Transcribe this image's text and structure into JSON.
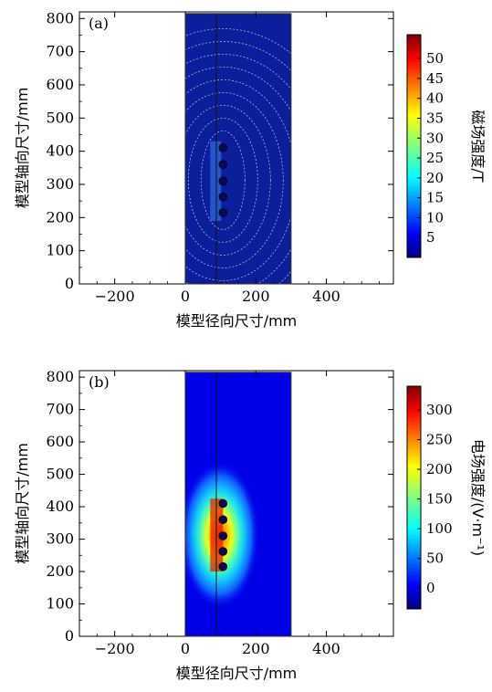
{
  "chart_data": [
    {
      "type": "heatmap",
      "panel_label": "(a)",
      "xlabel": "模型径向尺寸/mm",
      "ylabel": "模型轴向尺寸/mm",
      "xlim": [
        -300,
        590
      ],
      "ylim": [
        0,
        820
      ],
      "xticks": [
        "−200",
        "0",
        "200",
        "400"
      ],
      "xtick_values": [
        -200,
        0,
        200,
        400
      ],
      "yticks": [
        "0",
        "100",
        "200",
        "300",
        "400",
        "500",
        "600",
        "700",
        "800"
      ],
      "ytick_values": [
        0,
        100,
        200,
        300,
        400,
        500,
        600,
        700,
        800
      ],
      "domain_x": [
        0,
        300
      ],
      "domain_y": [
        0,
        815
      ],
      "boundary_x": 88,
      "coil_x": 107,
      "coil_y": [
        215,
        262,
        310,
        360,
        410
      ],
      "colorbar": {
        "label": "磁场强度/T",
        "range": [
          0,
          56
        ],
        "ticks": [
          "5",
          "10",
          "15",
          "20",
          "25",
          "30",
          "35",
          "40",
          "45",
          "50"
        ],
        "tick_values": [
          5,
          10,
          15,
          20,
          25,
          30,
          35,
          40,
          45,
          50
        ]
      },
      "field_pattern": "contour lines around coils"
    },
    {
      "type": "heatmap",
      "panel_label": "(b)",
      "xlabel": "模型径向尺寸/mm",
      "ylabel": "模型轴向尺寸/mm",
      "xlim": [
        -300,
        590
      ],
      "ylim": [
        0,
        820
      ],
      "xticks": [
        "−200",
        "0",
        "200",
        "400"
      ],
      "xtick_values": [
        -200,
        0,
        200,
        400
      ],
      "yticks": [
        "0",
        "100",
        "200",
        "300",
        "400",
        "500",
        "600",
        "700",
        "800"
      ],
      "ytick_values": [
        0,
        100,
        200,
        300,
        400,
        500,
        600,
        700,
        800
      ],
      "domain_x": [
        0,
        300
      ],
      "domain_y": [
        0,
        815
      ],
      "boundary_x": 88,
      "coil_x": 107,
      "coil_y": [
        215,
        262,
        310,
        360,
        410
      ],
      "colorbar": {
        "label": "电场强度/(V·m⁻¹)",
        "range": [
          -35,
          340
        ],
        "ticks": [
          "0",
          "50",
          "100",
          "150",
          "200",
          "250",
          "300"
        ],
        "tick_values": [
          0,
          50,
          100,
          150,
          200,
          250,
          300
        ]
      },
      "field_pattern": "smooth hotspot around coils"
    }
  ]
}
